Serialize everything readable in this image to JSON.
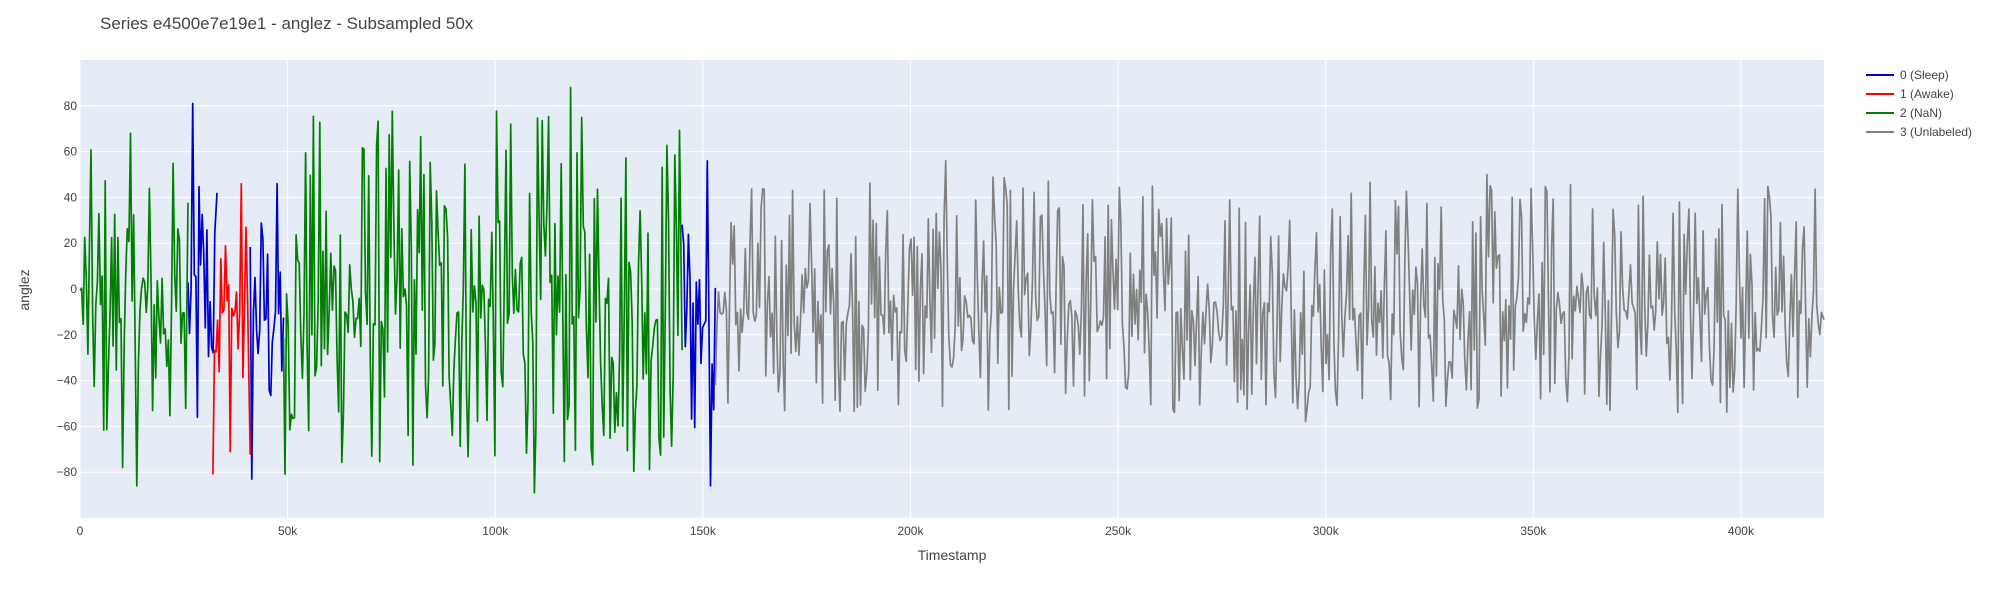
{
  "chart_data": {
    "type": "line",
    "title": "Series e4500e7e19e1 - anglez - Subsampled 50x",
    "xlabel": "Timestamp",
    "ylabel": "anglez",
    "xlim": [
      0,
      420000
    ],
    "ylim": [
      -100,
      100
    ],
    "x_ticks": [
      0,
      50000,
      100000,
      150000,
      200000,
      250000,
      300000,
      350000,
      400000
    ],
    "x_tick_labels": [
      "0",
      "50k",
      "100k",
      "150k",
      "200k",
      "250k",
      "300k",
      "350k",
      "400k"
    ],
    "y_ticks": [
      -80,
      -60,
      -40,
      -20,
      0,
      20,
      40,
      60,
      80
    ],
    "y_tick_labels": [
      "−80",
      "−60",
      "−40",
      "−20",
      "0",
      "20",
      "40",
      "60",
      "80"
    ],
    "grid": true,
    "legend_position": "top-right",
    "series": [
      {
        "name": "0 (Sleep)",
        "color": "#0000cc",
        "segments": [
          {
            "x_start": 26000,
            "x_end": 33000,
            "y_min": -56,
            "y_max": 81
          },
          {
            "x_start": 41000,
            "x_end": 49000,
            "y_min": -83,
            "y_max": 46
          },
          {
            "x_start": 145000,
            "x_end": 153000,
            "y_min": -86,
            "y_max": 56
          }
        ]
      },
      {
        "name": "1 (Awake)",
        "color": "#ff0000",
        "segments": [
          {
            "x_start": 32000,
            "x_end": 41000,
            "y_min": -81,
            "y_max": 46
          }
        ]
      },
      {
        "name": "2 (NaN)",
        "color": "#008000",
        "segments": [
          {
            "x_start": 0,
            "x_end": 26000,
            "y_min": -86,
            "y_max": 68
          },
          {
            "x_start": 49000,
            "x_end": 145000,
            "y_min": -89,
            "y_max": 88
          }
        ]
      },
      {
        "name": "3 (Unlabeled)",
        "color": "#808080",
        "segments": [
          {
            "x_start": 153000,
            "x_end": 420000,
            "y_min": -58,
            "y_max": 56
          }
        ]
      }
    ]
  }
}
